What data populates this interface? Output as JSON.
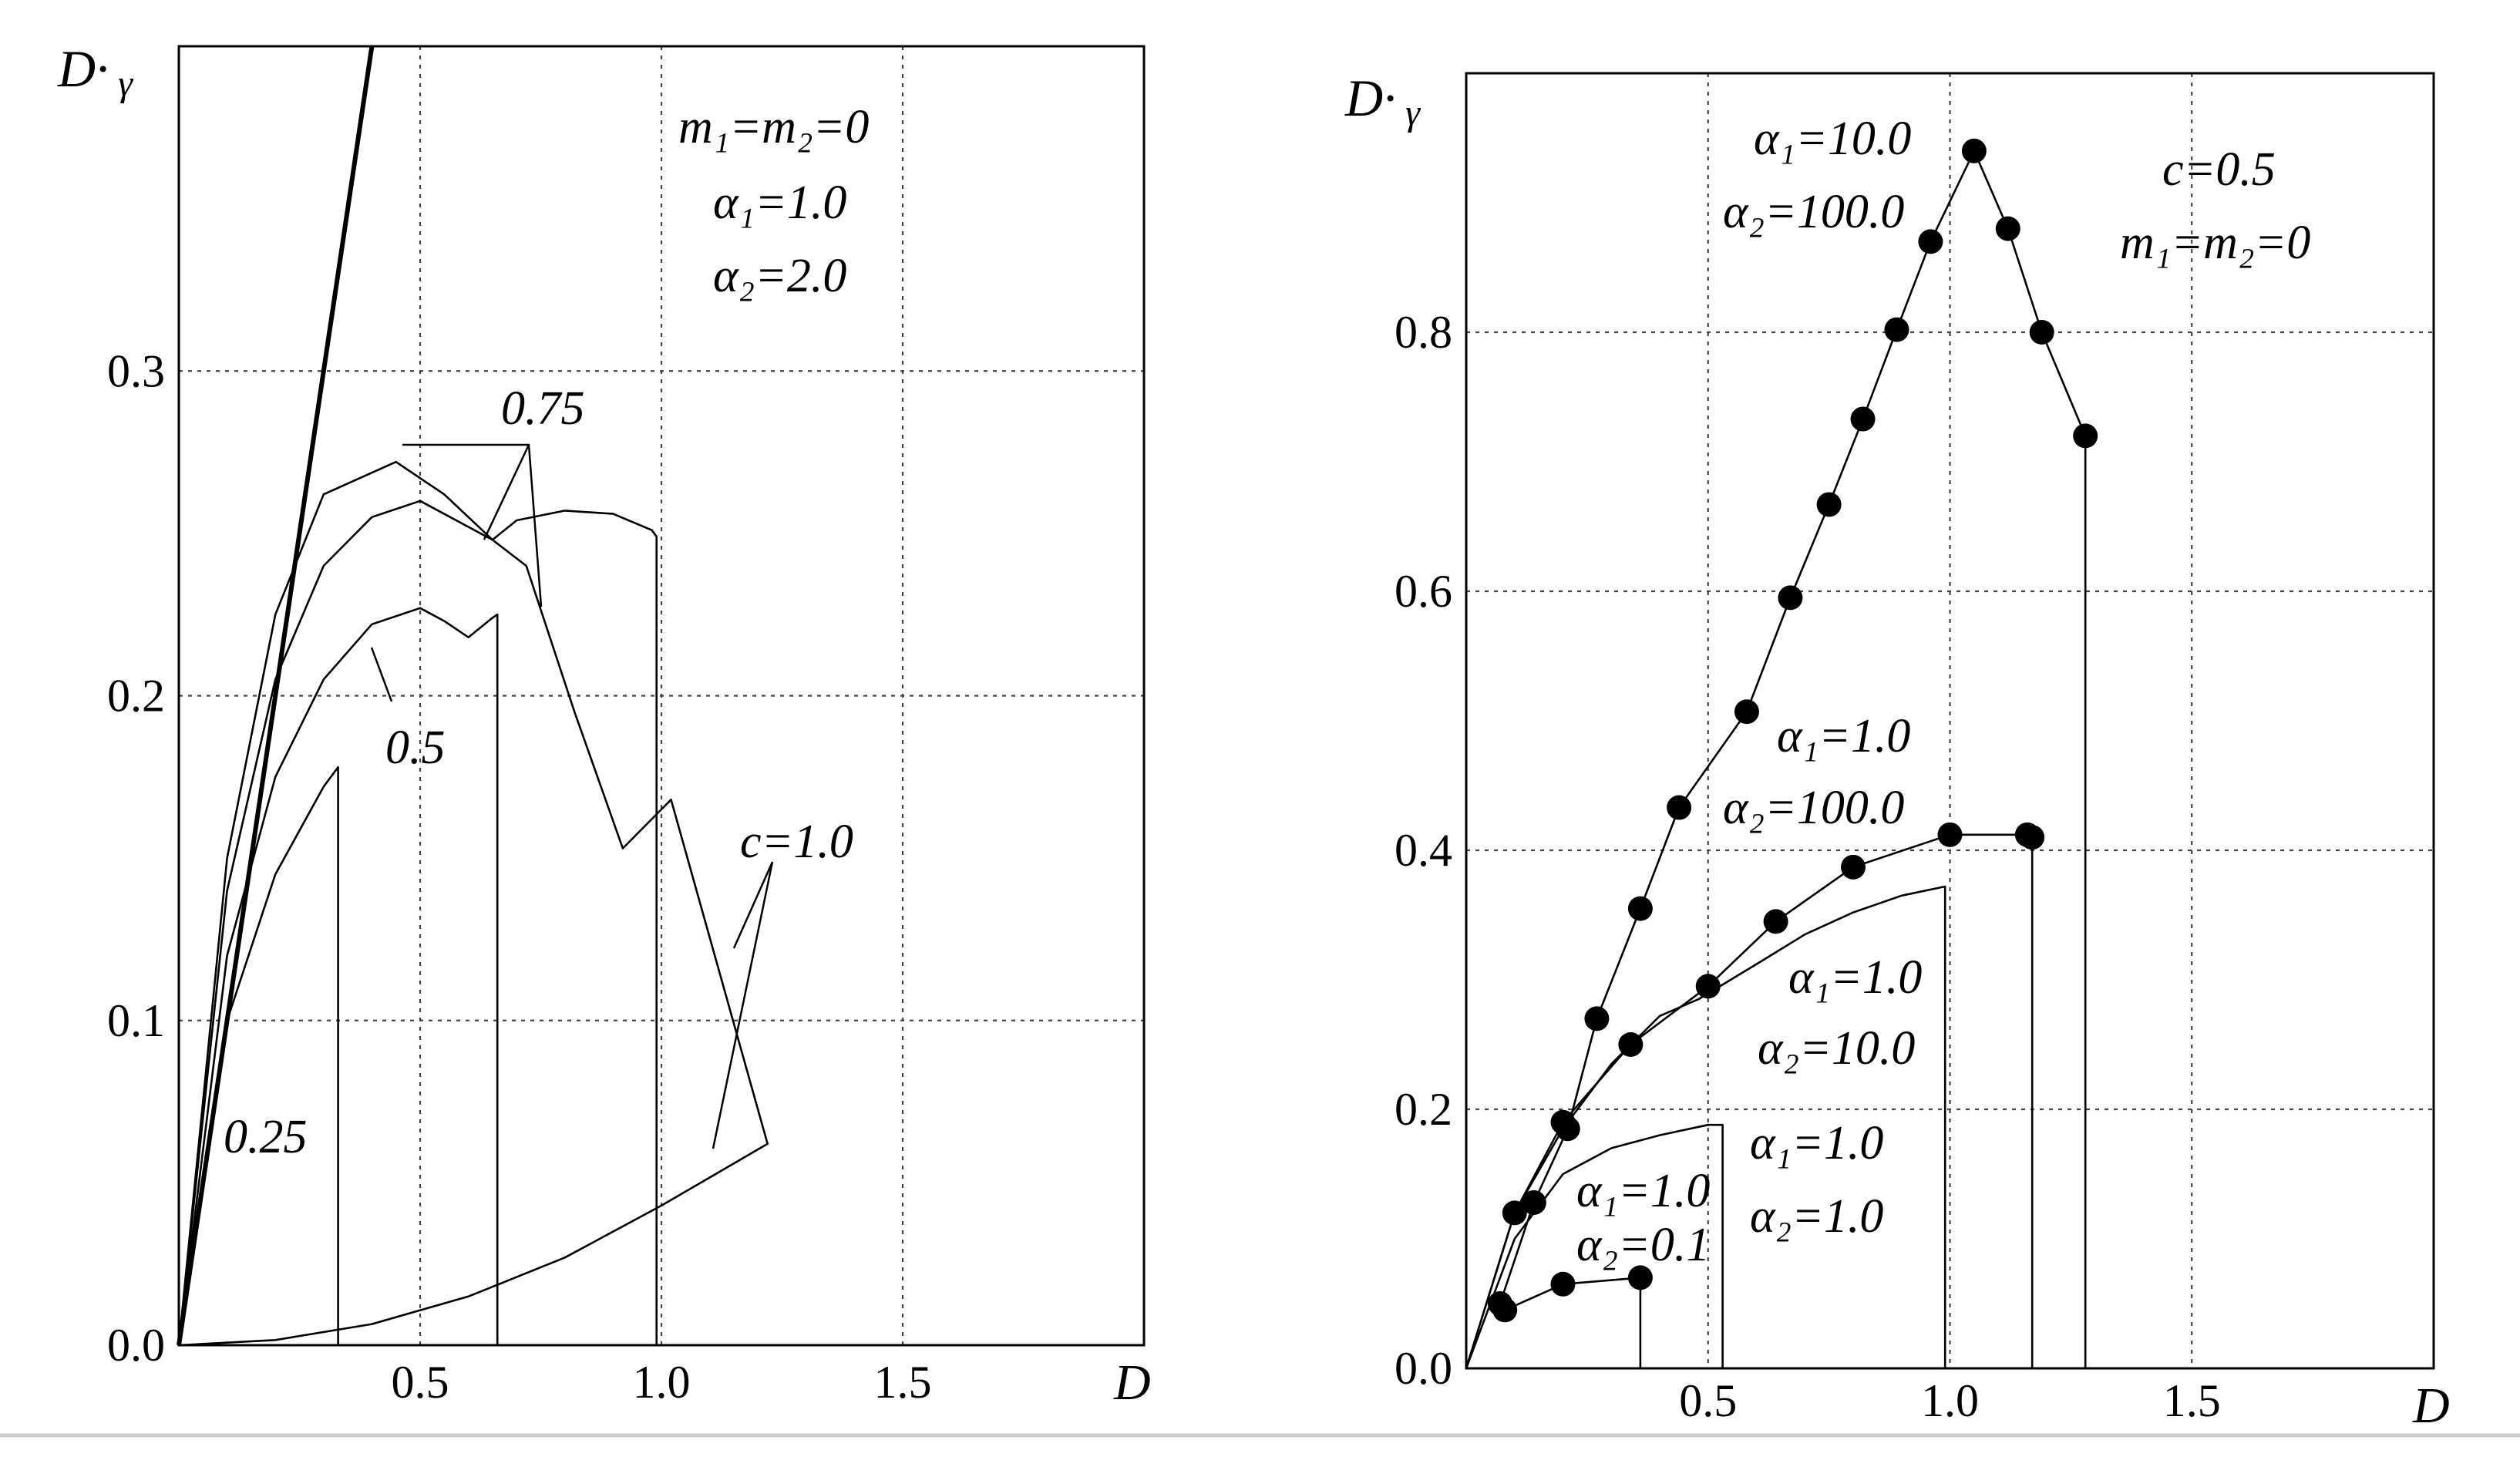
{
  "chart_data": [
    {
      "type": "line",
      "title": "",
      "xlabel": "D",
      "ylabel": "D·γ",
      "xlim": [
        0,
        2.0
      ],
      "ylim": [
        0,
        0.4
      ],
      "x_ticks": [
        "0.5",
        "1.0",
        "1.5"
      ],
      "y_ticks": [
        "0.0",
        "0.1",
        "0.2",
        "0.3"
      ],
      "grid": true,
      "params": [
        "m₁=m₂=0",
        "α₁=1.0",
        "α₂=2.0"
      ],
      "series": [
        {
          "name": "0.25",
          "x": [
            0,
            0.1,
            0.2,
            0.3,
            0.33,
            0.33
          ],
          "y": [
            0,
            0.1,
            0.145,
            0.172,
            0.178,
            0
          ]
        },
        {
          "name": "0.5",
          "x": [
            0,
            0.1,
            0.2,
            0.3,
            0.4,
            0.5,
            0.55,
            0.6,
            0.65,
            0.66,
            0.66
          ],
          "y": [
            0,
            0.12,
            0.175,
            0.205,
            0.222,
            0.227,
            0.223,
            0.218,
            0.224,
            0.225,
            0
          ]
        },
        {
          "name": "0.75",
          "x": [
            0,
            0.1,
            0.2,
            0.3,
            0.4,
            0.5,
            0.6,
            0.65,
            0.7,
            0.8,
            0.9,
            0.98,
            0.99,
            0.99
          ],
          "y": [
            0,
            0.14,
            0.205,
            0.24,
            0.255,
            0.26,
            0.252,
            0.248,
            0.254,
            0.257,
            0.256,
            0.251,
            0.249,
            0
          ]
        },
        {
          "name": "c=1.0",
          "x": [
            0,
            0.1,
            0.2,
            0.3,
            0.42,
            0.45,
            0.55,
            0.65,
            0.72,
            0.82,
            0.92,
            1.02,
            1.22,
            1.0,
            0.8,
            0.6,
            0.4,
            0.2,
            0
          ],
          "y": [
            0,
            0.15,
            0.225,
            0.262,
            0.27,
            0.272,
            0.262,
            0.248,
            0.24,
            0.195,
            0.153,
            0.168,
            0.062,
            0.043,
            0.027,
            0.015,
            0.0065,
            0.0016,
            0
          ]
        },
        {
          "name": "",
          "x": [
            0,
            0.4
          ],
          "y": [
            0,
            0.4
          ]
        }
      ],
      "annotations": [
        "0.75",
        "0.5",
        "c=1.0",
        "0.25"
      ]
    },
    {
      "type": "line",
      "title": "",
      "xlabel": "D",
      "ylabel": "D·γ",
      "xlim": [
        0,
        2.0
      ],
      "ylim": [
        0,
        1.0
      ],
      "x_ticks": [
        "0.5",
        "1.0",
        "1.5"
      ],
      "y_ticks": [
        "0.0",
        "0.2",
        "0.4",
        "0.6",
        "0.8"
      ],
      "grid": true,
      "params": [
        "c=0.5",
        "m₁=m₂=0"
      ],
      "series": [
        {
          "name": "α₁=10.0 α₂=100.0",
          "markers": true,
          "x": [
            0.07,
            0.14,
            0.21,
            0.27,
            0.36,
            0.44,
            0.58,
            0.67,
            0.75,
            0.82,
            0.89,
            0.96,
            1.05,
            1.12,
            1.19,
            1.28,
            1.28
          ],
          "y": [
            0.05,
            0.128,
            0.185,
            0.27,
            0.355,
            0.433,
            0.507,
            0.595,
            0.667,
            0.733,
            0.802,
            0.87,
            0.94,
            0.88,
            0.8,
            0.72,
            0
          ]
        },
        {
          "name": "α₁=1.0 α₂=100.0",
          "markers": true,
          "x": [
            0,
            0.1,
            0.2,
            0.34,
            0.5,
            0.64,
            0.8,
            1.0,
            1.16,
            1.17,
            1.17
          ],
          "y": [
            0,
            0.12,
            0.19,
            0.25,
            0.295,
            0.345,
            0.387,
            0.412,
            0.412,
            0.41,
            0
          ]
        },
        {
          "name": "α₁=1.0 α₂=10.0",
          "markers": false,
          "x": [
            0,
            0.1,
            0.2,
            0.3,
            0.4,
            0.48,
            0.6,
            0.7,
            0.8,
            0.9,
            0.99,
            0.99
          ],
          "y": [
            0,
            0.12,
            0.185,
            0.235,
            0.272,
            0.285,
            0.312,
            0.335,
            0.352,
            0.365,
            0.372,
            0
          ]
        },
        {
          "name": "α₁=1.0 α₂=1.0",
          "markers": false,
          "x": [
            0,
            0.1,
            0.2,
            0.3,
            0.4,
            0.5,
            0.53,
            0.53
          ],
          "y": [
            0,
            0.1,
            0.15,
            0.17,
            0.18,
            0.188,
            0.188,
            0
          ]
        },
        {
          "name": "α₁=1.0 α₂=0.1",
          "markers": true,
          "x": [
            0.08,
            0.2,
            0.36,
            0.36
          ],
          "y": [
            0.045,
            0.065,
            0.07,
            0
          ]
        }
      ],
      "annotations": [
        "α₁=10.0",
        "α₂=100.0",
        "α₁=1.0",
        "α₂=100.0",
        "α₁=1.0",
        "α₂=10.0",
        "α₁=1.0",
        "α₂=1.0",
        "α₁=1.0",
        "α₂=0.1"
      ]
    }
  ]
}
